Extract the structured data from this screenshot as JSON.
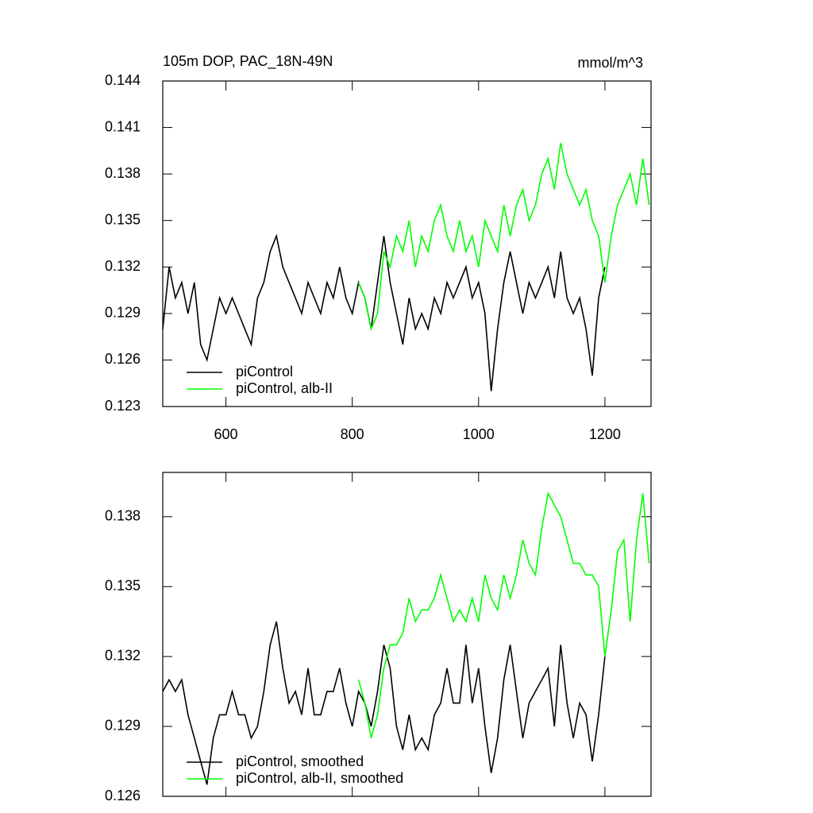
{
  "chart_data": [
    {
      "type": "line",
      "title": "105m DOP, PAC_18N-49N",
      "units": "mmol/m^3",
      "xlim": [
        500,
        1273
      ],
      "xticks": [
        600,
        800,
        1000,
        1200
      ],
      "show_xtick_labels": true,
      "ylim": [
        0.123,
        0.144
      ],
      "yticks": [
        0.123,
        0.126,
        0.129,
        0.132,
        0.135,
        0.138,
        0.141,
        0.144
      ],
      "legend": "lower left",
      "series": [
        {
          "name": "piControl",
          "color": "#000000",
          "x": [
            500,
            510,
            520,
            530,
            540,
            550,
            560,
            570,
            580,
            590,
            600,
            610,
            620,
            630,
            640,
            650,
            660,
            670,
            680,
            690,
            700,
            710,
            720,
            730,
            740,
            750,
            760,
            770,
            780,
            790,
            800,
            810,
            820,
            830,
            840,
            850,
            860,
            870,
            880,
            890,
            900,
            910,
            920,
            930,
            940,
            950,
            960,
            970,
            980,
            990,
            1000,
            1010,
            1020,
            1030,
            1040,
            1050,
            1060,
            1070,
            1080,
            1090,
            1100,
            1110,
            1120,
            1130,
            1140,
            1150,
            1160,
            1170,
            1180,
            1190,
            1200
          ],
          "values": [
            0.128,
            0.132,
            0.13,
            0.131,
            0.129,
            0.131,
            0.127,
            0.126,
            0.128,
            0.13,
            0.129,
            0.13,
            0.129,
            0.128,
            0.127,
            0.13,
            0.131,
            0.133,
            0.134,
            0.132,
            0.131,
            0.13,
            0.129,
            0.131,
            0.13,
            0.129,
            0.131,
            0.13,
            0.132,
            0.13,
            0.129,
            0.131,
            0.13,
            0.128,
            0.131,
            0.134,
            0.131,
            0.129,
            0.127,
            0.13,
            0.128,
            0.129,
            0.128,
            0.13,
            0.129,
            0.131,
            0.13,
            0.131,
            0.132,
            0.13,
            0.131,
            0.129,
            0.124,
            0.128,
            0.131,
            0.133,
            0.131,
            0.129,
            0.131,
            0.13,
            0.131,
            0.132,
            0.13,
            0.133,
            0.13,
            0.129,
            0.13,
            0.128,
            0.125,
            0.13,
            0.132
          ]
        },
        {
          "name": "piControl, alb-II",
          "color": "#00ff00",
          "x": [
            810,
            820,
            830,
            840,
            850,
            860,
            870,
            880,
            890,
            900,
            910,
            920,
            930,
            940,
            950,
            960,
            970,
            980,
            990,
            1000,
            1010,
            1020,
            1030,
            1040,
            1050,
            1060,
            1070,
            1080,
            1090,
            1100,
            1110,
            1120,
            1130,
            1140,
            1150,
            1160,
            1170,
            1180,
            1190,
            1200,
            1210,
            1220,
            1230,
            1240,
            1250,
            1260,
            1270
          ],
          "values": [
            0.131,
            0.13,
            0.128,
            0.129,
            0.133,
            0.132,
            0.134,
            0.133,
            0.135,
            0.132,
            0.134,
            0.133,
            0.135,
            0.136,
            0.134,
            0.133,
            0.135,
            0.133,
            0.134,
            0.132,
            0.135,
            0.134,
            0.133,
            0.136,
            0.134,
            0.136,
            0.137,
            0.135,
            0.136,
            0.138,
            0.139,
            0.137,
            0.14,
            0.138,
            0.137,
            0.136,
            0.137,
            0.135,
            0.134,
            0.131,
            0.134,
            0.136,
            0.137,
            0.138,
            0.136,
            0.139,
            0.136
          ]
        }
      ]
    },
    {
      "type": "line",
      "xlim": [
        500,
        1273
      ],
      "xticks": [
        600,
        800,
        1000,
        1200
      ],
      "show_xtick_labels": false,
      "ylim": [
        0.126,
        0.1399
      ],
      "yticks": [
        0.126,
        0.129,
        0.132,
        0.135,
        0.138
      ],
      "legend": "lower left",
      "series": [
        {
          "name": "piControl, smoothed",
          "color": "#000000",
          "x": [
            500,
            510,
            520,
            530,
            540,
            550,
            560,
            570,
            580,
            590,
            600,
            610,
            620,
            630,
            640,
            650,
            660,
            670,
            680,
            690,
            700,
            710,
            720,
            730,
            740,
            750,
            760,
            770,
            780,
            790,
            800,
            810,
            820,
            830,
            840,
            850,
            860,
            870,
            880,
            890,
            900,
            910,
            920,
            930,
            940,
            950,
            960,
            970,
            980,
            990,
            1000,
            1010,
            1020,
            1030,
            1040,
            1050,
            1060,
            1070,
            1080,
            1090,
            1100,
            1110,
            1120,
            1130,
            1140,
            1150,
            1160,
            1170,
            1180,
            1190,
            1200
          ],
          "values": [
            0.1305,
            0.131,
            0.1305,
            0.131,
            0.1295,
            0.1285,
            0.1275,
            0.1265,
            0.1285,
            0.1295,
            0.1295,
            0.1305,
            0.1295,
            0.1295,
            0.1285,
            0.129,
            0.1305,
            0.1325,
            0.1335,
            0.1315,
            0.13,
            0.1305,
            0.1295,
            0.1315,
            0.1295,
            0.1295,
            0.1305,
            0.1305,
            0.1315,
            0.13,
            0.129,
            0.1305,
            0.13,
            0.129,
            0.1305,
            0.1325,
            0.1315,
            0.129,
            0.128,
            0.1295,
            0.128,
            0.1285,
            0.128,
            0.1295,
            0.13,
            0.1315,
            0.13,
            0.13,
            0.1325,
            0.13,
            0.1315,
            0.129,
            0.127,
            0.1285,
            0.131,
            0.1325,
            0.1305,
            0.1285,
            0.13,
            0.1305,
            0.131,
            0.1315,
            0.129,
            0.1325,
            0.13,
            0.1285,
            0.13,
            0.1295,
            0.1275,
            0.1295,
            0.132
          ]
        },
        {
          "name": "piControl, alb-II, smoothed",
          "color": "#00ff00",
          "x": [
            810,
            820,
            830,
            840,
            850,
            860,
            870,
            880,
            890,
            900,
            910,
            920,
            930,
            940,
            950,
            960,
            970,
            980,
            990,
            1000,
            1010,
            1020,
            1030,
            1040,
            1050,
            1060,
            1070,
            1080,
            1090,
            1100,
            1110,
            1120,
            1130,
            1140,
            1150,
            1160,
            1170,
            1180,
            1190,
            1200,
            1210,
            1220,
            1230,
            1240,
            1250,
            1260,
            1270
          ],
          "values": [
            0.131,
            0.13,
            0.1285,
            0.1295,
            0.1315,
            0.1325,
            0.1325,
            0.133,
            0.1345,
            0.1335,
            0.134,
            0.134,
            0.1345,
            0.1355,
            0.1345,
            0.1335,
            0.134,
            0.1335,
            0.1345,
            0.1335,
            0.1355,
            0.1345,
            0.134,
            0.1355,
            0.1345,
            0.1355,
            0.137,
            0.136,
            0.1355,
            0.1375,
            0.139,
            0.1385,
            0.138,
            0.137,
            0.136,
            0.136,
            0.1355,
            0.1355,
            0.135,
            0.132,
            0.134,
            0.1365,
            0.137,
            0.1335,
            0.137,
            0.139,
            0.136
          ]
        }
      ]
    }
  ]
}
